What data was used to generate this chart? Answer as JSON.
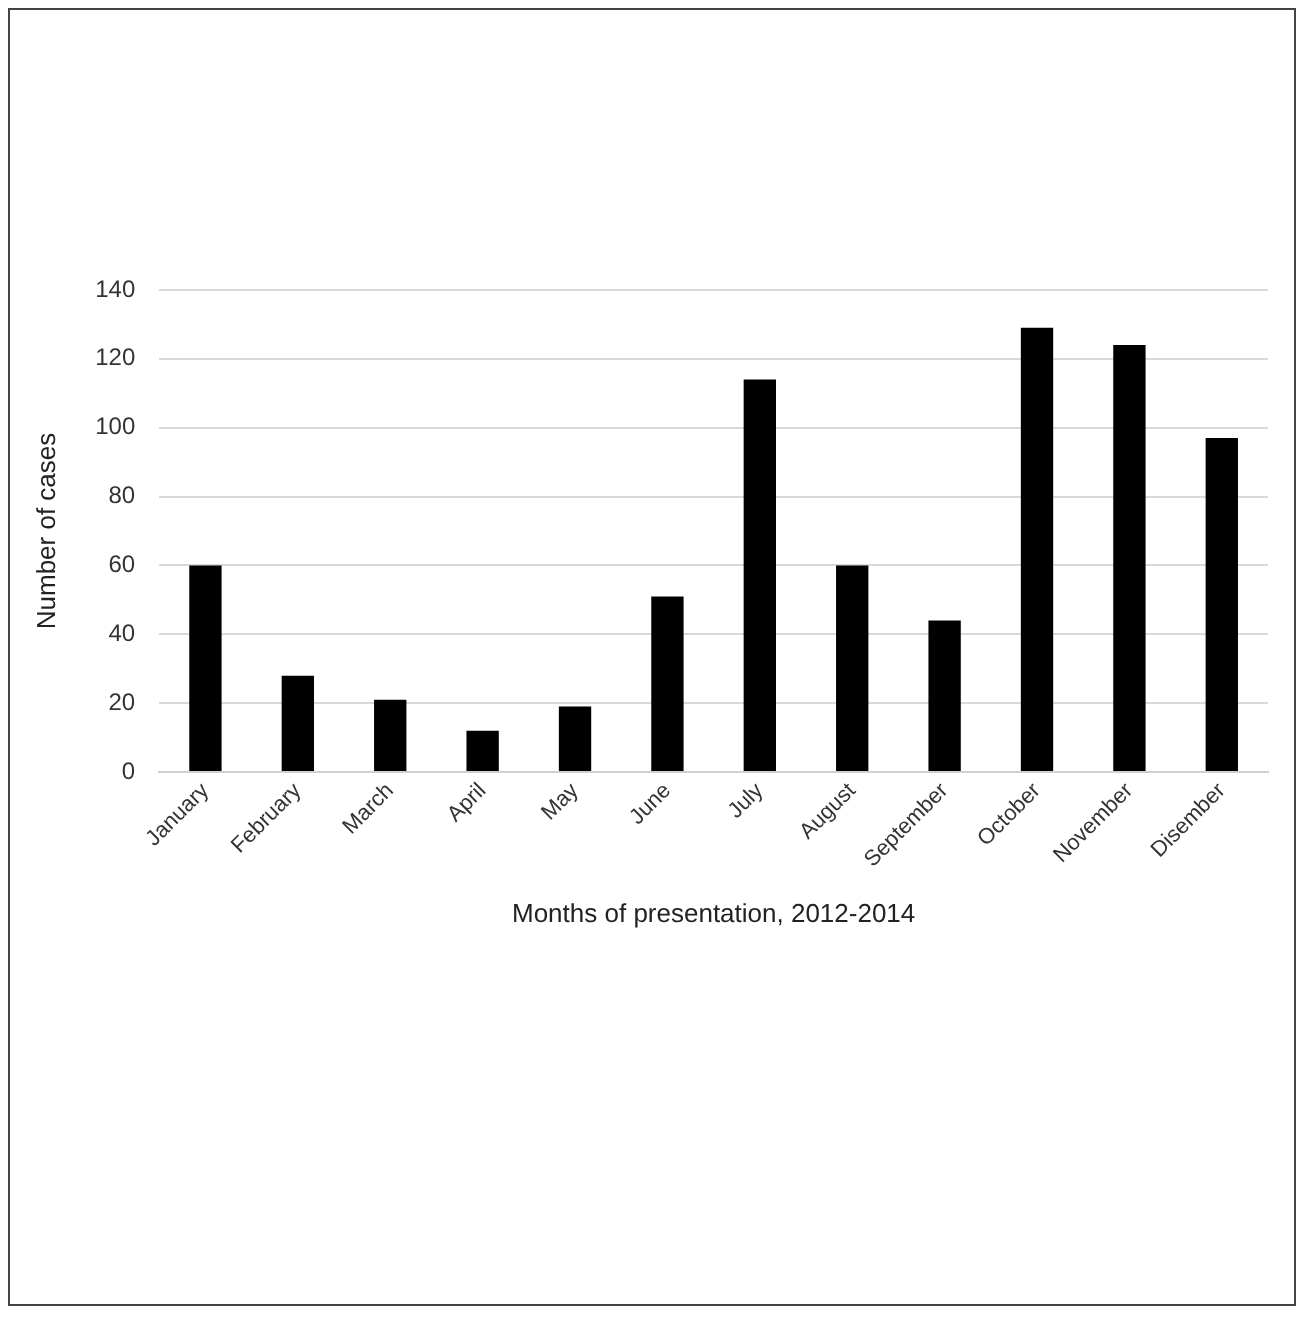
{
  "chart_data": {
    "type": "bar",
    "xlabel": "Months of presentation, 2012-2014",
    "ylabel": "Number of cases",
    "categories": [
      "January",
      "February",
      "March",
      "April",
      "May",
      "June",
      "July",
      "August",
      "September",
      "October",
      "November",
      "Disember"
    ],
    "values": [
      60,
      28,
      21,
      12,
      19,
      51,
      114,
      60,
      44,
      129,
      124,
      97
    ],
    "color": "#000000",
    "ylim": [
      0,
      140
    ],
    "yticks": [
      0,
      20,
      40,
      60,
      80,
      100,
      120,
      140
    ],
    "grid": "y"
  }
}
